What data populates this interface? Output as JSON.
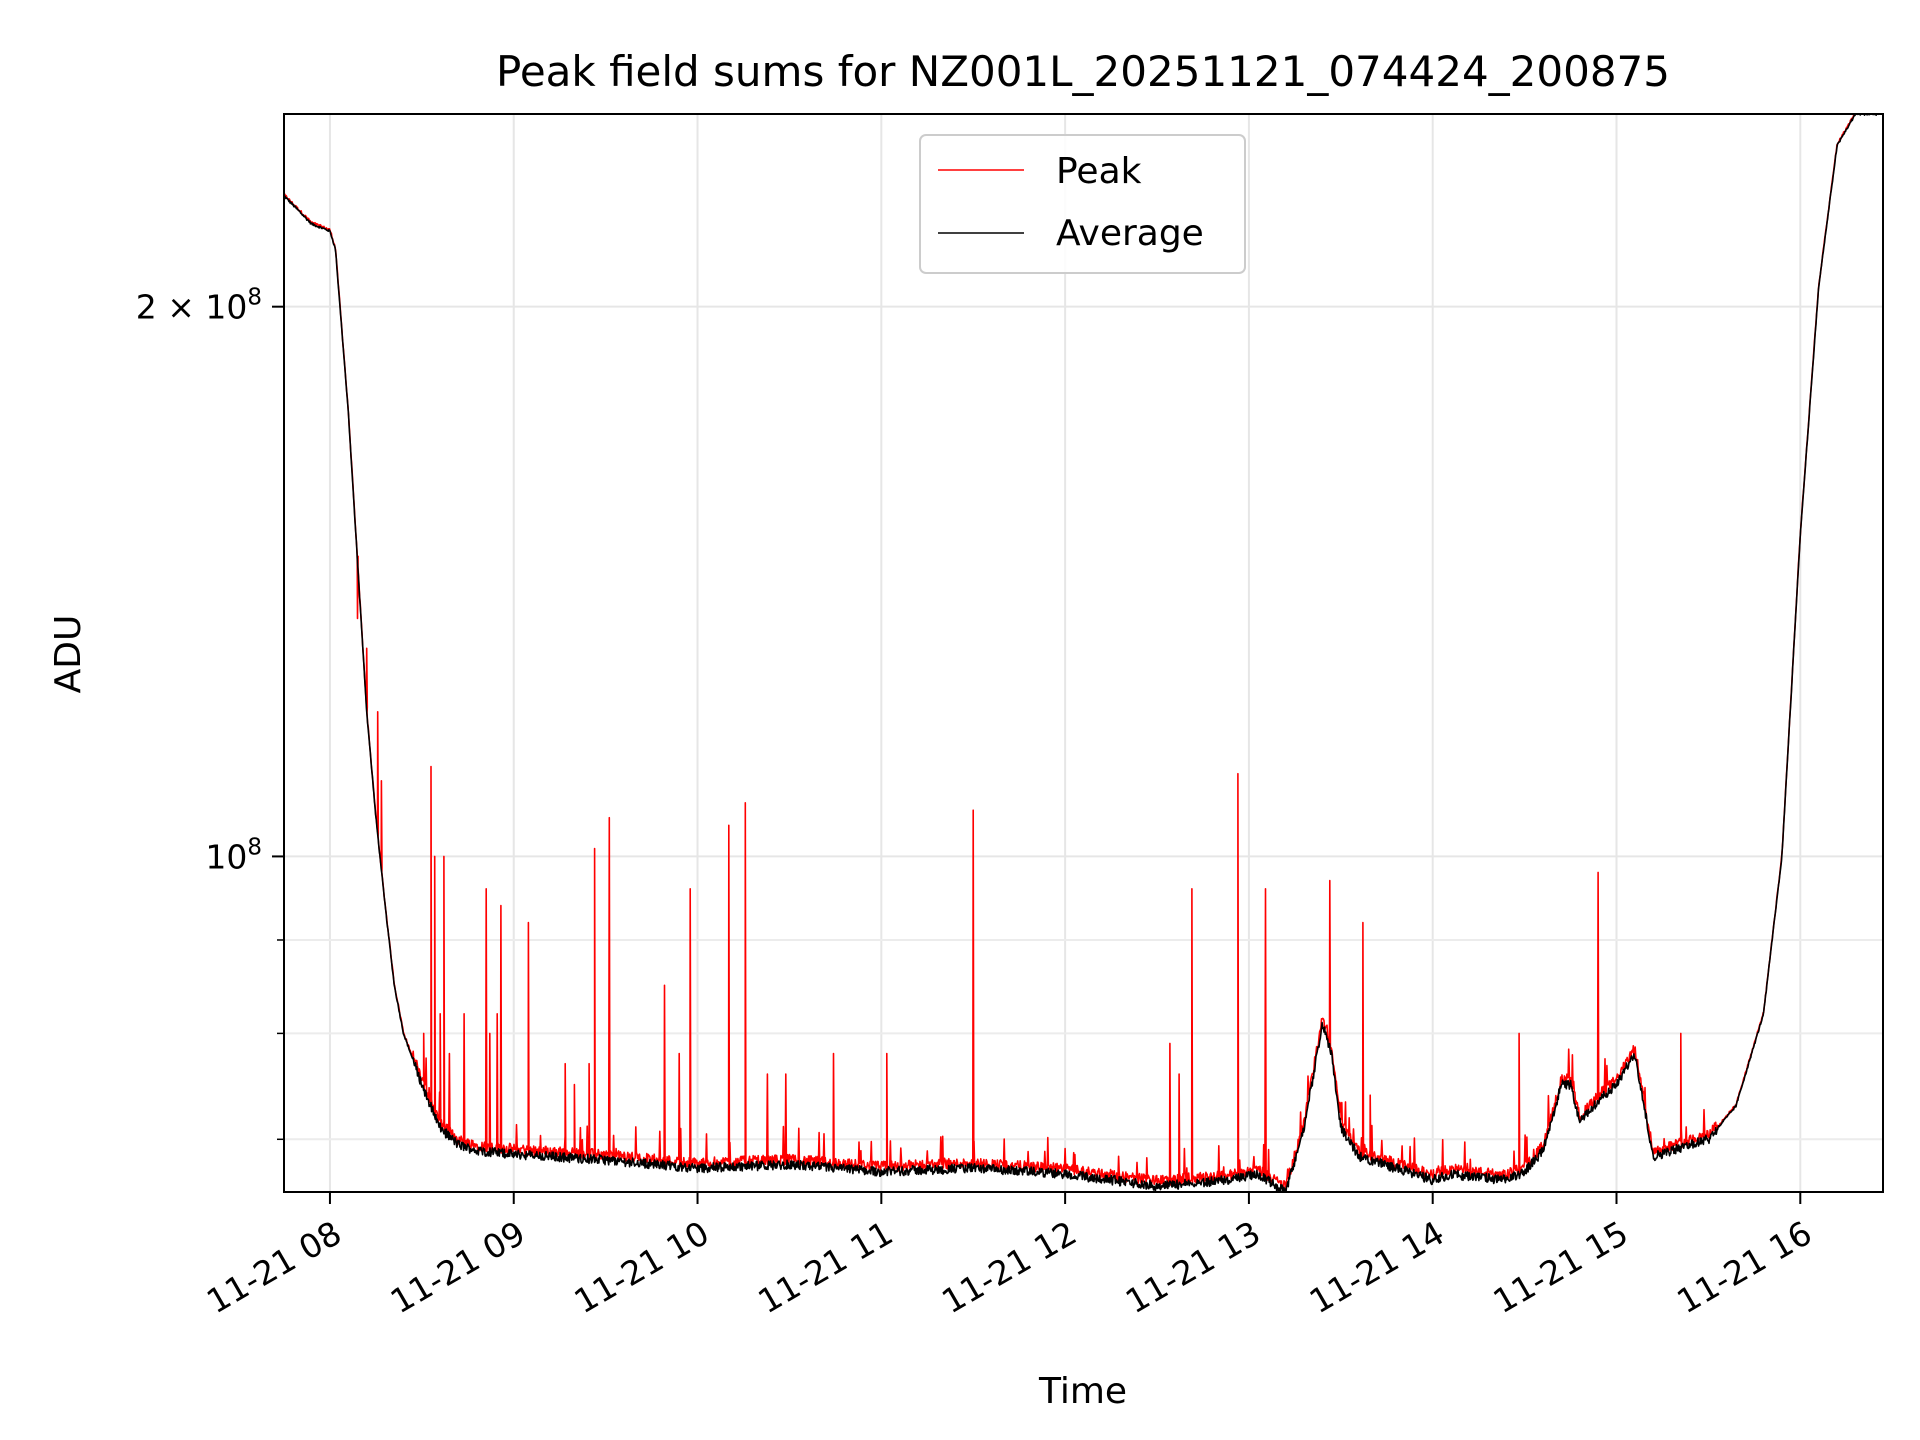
{
  "chart_data": {
    "type": "line",
    "title": "Peak field sums for NZ001L_20251121_074424_200875",
    "xlabel": "Time",
    "ylabel": "ADU",
    "yscale": "log",
    "grid": true,
    "legend_loc": "upper center",
    "xlim": [
      7.75,
      16.45
    ],
    "ylim": [
      65500000.0,
      255000000.0
    ],
    "x_ticks": [
      8,
      9,
      10,
      11,
      12,
      13,
      14,
      15,
      16
    ],
    "x_tick_labels": [
      "11-21 08",
      "11-21 09",
      "11-21 10",
      "11-21 11",
      "11-21 12",
      "11-21 13",
      "11-21 14",
      "11-21 15",
      "11-21 16"
    ],
    "y_ticks_major": [
      {
        "value": 200000000,
        "label_base": "2 × 10",
        "label_exp": "8"
      },
      {
        "value": 100000000,
        "label_base": "10",
        "label_exp": "8"
      }
    ],
    "y_ticks_minor": [
      70000000,
      80000000,
      90000000
    ],
    "series": [
      {
        "name": "Peak",
        "color": "#ff0000"
      },
      {
        "name": "Average",
        "color": "#000000"
      }
    ],
    "baseline": {
      "x": [
        7.75,
        7.9,
        8.0,
        8.03,
        8.1,
        8.15,
        8.2,
        8.25,
        8.3,
        8.35,
        8.4,
        8.5,
        8.6,
        8.7,
        8.8,
        9.0,
        9.5,
        10.0,
        10.5,
        11.0,
        11.5,
        12.0,
        12.5,
        12.9,
        13.05,
        13.2,
        13.3,
        13.4,
        13.45,
        13.5,
        13.6,
        13.8,
        14.0,
        14.1,
        14.2,
        14.4,
        14.5,
        14.6,
        14.7,
        14.75,
        14.8,
        14.9,
        15.0,
        15.1,
        15.15,
        15.2,
        15.3,
        15.5,
        15.65,
        15.8,
        15.9,
        16.0,
        16.1,
        16.2,
        16.3,
        16.45
      ],
      "y": [
        230000000.0,
        222000000.0,
        220000000.0,
        215000000.0,
        175000000.0,
        145000000.0,
        120000000.0,
        105000000.0,
        94000000.0,
        85000000.0,
        80000000.0,
        75000000.0,
        71000000.0,
        69500000.0,
        69000000.0,
        68700000.0,
        68200000.0,
        67500000.0,
        67800000.0,
        67200000.0,
        67500000.0,
        67000000.0,
        66000000.0,
        66500000.0,
        67000000.0,
        65500000.0,
        71000000.0,
        81000000.0,
        78000000.0,
        71000000.0,
        68500000.0,
        67500000.0,
        66500000.0,
        67000000.0,
        66800000.0,
        66500000.0,
        67200000.0,
        69000000.0,
        75000000.0,
        75000000.0,
        71500000.0,
        73500000.0,
        75000000.0,
        78000000.0,
        73000000.0,
        68500000.0,
        69000000.0,
        70000000.0,
        73000000.0,
        82000000.0,
        100000000.0,
        150000000.0,
        205000000.0,
        245000000.0,
        255000000.0,
        255000000.0
      ]
    },
    "spikes": [
      [
        8.15,
        135000000.0
      ],
      [
        8.2,
        130000000.0
      ],
      [
        8.26,
        120000000.0
      ],
      [
        8.28,
        110000000.0
      ],
      [
        8.51,
        80000000.0
      ],
      [
        8.55,
        112000000.0
      ],
      [
        8.57,
        100000000.0
      ],
      [
        8.6,
        82000000.0
      ],
      [
        8.62,
        100000000.0
      ],
      [
        8.65,
        78000000.0
      ],
      [
        8.73,
        82000000.0
      ],
      [
        8.85,
        96000000.0
      ],
      [
        8.87,
        80000000.0
      ],
      [
        8.91,
        82000000.0
      ],
      [
        8.93,
        94000000.0
      ],
      [
        9.08,
        92000000.0
      ],
      [
        9.28,
        77000000.0
      ],
      [
        9.33,
        75000000.0
      ],
      [
        9.41,
        77000000.0
      ],
      [
        9.44,
        101000000.0
      ],
      [
        9.52,
        105000000.0
      ],
      [
        9.82,
        85000000.0
      ],
      [
        9.9,
        78000000.0
      ],
      [
        9.96,
        96000000.0
      ],
      [
        10.17,
        104000000.0
      ],
      [
        10.26,
        107000000.0
      ],
      [
        10.38,
        76000000.0
      ],
      [
        10.48,
        76000000.0
      ],
      [
        10.74,
        78000000.0
      ],
      [
        11.03,
        78000000.0
      ],
      [
        11.5,
        106000000.0
      ],
      [
        12.57,
        79000000.0
      ],
      [
        12.62,
        76000000.0
      ],
      [
        12.69,
        96000000.0
      ],
      [
        12.94,
        111000000.0
      ],
      [
        13.09,
        96000000.0
      ],
      [
        13.44,
        97000000.0
      ],
      [
        13.62,
        92000000.0
      ],
      [
        13.66,
        74000000.0
      ],
      [
        14.47,
        80000000.0
      ],
      [
        14.9,
        98000000.0
      ],
      [
        15.35,
        80000000.0
      ]
    ]
  }
}
